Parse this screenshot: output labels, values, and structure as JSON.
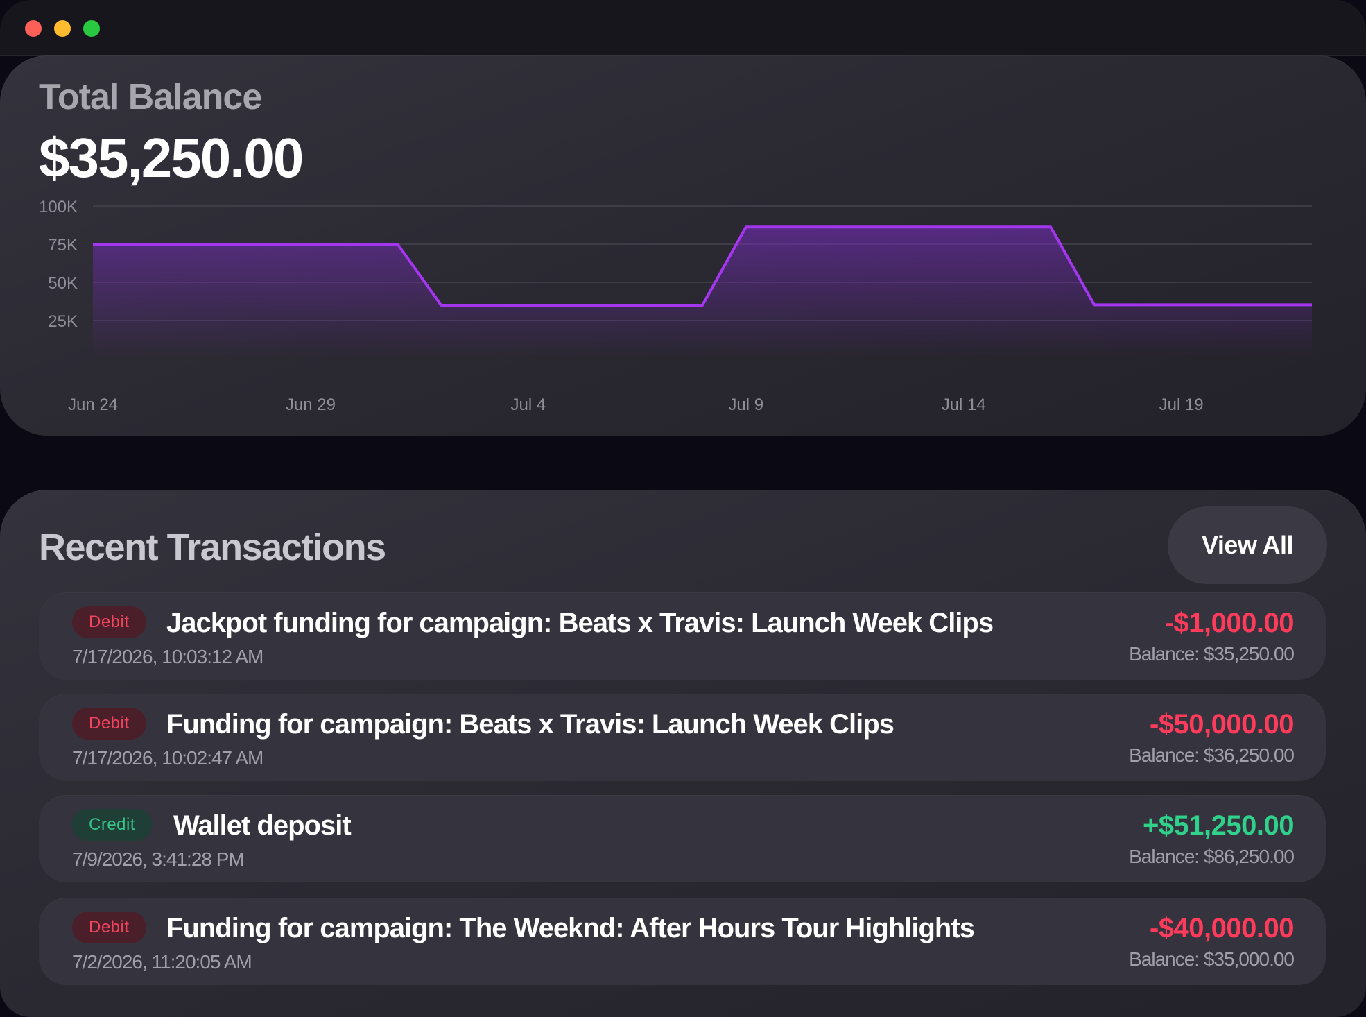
{
  "window": {
    "controls": [
      "close",
      "minimize",
      "maximize"
    ]
  },
  "balance": {
    "label": "Total Balance",
    "value": "$35,250.00"
  },
  "chart_data": {
    "type": "area",
    "title": "",
    "xlabel": "",
    "ylabel": "",
    "ylim": [
      0,
      100000
    ],
    "y_ticks": [
      {
        "value": 100000,
        "label": "100K"
      },
      {
        "value": 75000,
        "label": "75K"
      },
      {
        "value": 50000,
        "label": "50K"
      },
      {
        "value": 25000,
        "label": "25K"
      }
    ],
    "x_ticks": [
      "Jun 24",
      "Jun 29",
      "Jul 4",
      "Jul 9",
      "Jul 14",
      "Jul 19"
    ],
    "xlim": [
      "2026-06-24",
      "2026-07-22"
    ],
    "grid": true,
    "series": [
      {
        "x": [
          "2026-06-24",
          "2026-07-01",
          "2026-07-02",
          "2026-07-08",
          "2026-07-09",
          "2026-07-16",
          "2026-07-17",
          "2026-07-22"
        ],
        "y": [
          75000,
          75000,
          35000,
          35000,
          86250,
          86250,
          35250,
          35250
        ],
        "color": "#a336ee"
      }
    ]
  },
  "transactions": {
    "title": "Recent Transactions",
    "view_all_label": "View All",
    "items": [
      {
        "type": "Debit",
        "description": "Jackpot funding for campaign: Beats x Travis: Launch Week Clips",
        "date": "7/17/2026, 10:03:12 AM",
        "amount": "-$1,000.00",
        "balance": "Balance: $35,250.00"
      },
      {
        "type": "Debit",
        "description": "Funding for campaign: Beats x Travis: Launch Week Clips",
        "date": "7/17/2026, 10:02:47 AM",
        "amount": "-$50,000.00",
        "balance": "Balance: $36,250.00"
      },
      {
        "type": "Credit",
        "description": "Wallet deposit",
        "date": "7/9/2026, 3:41:28 PM",
        "amount": "+$51,250.00",
        "balance": "Balance: $86,250.00"
      },
      {
        "type": "Debit",
        "description": "Funding for campaign: The Weeknd: After Hours Tour Highlights",
        "date": "7/2/2026, 11:20:05 AM",
        "amount": "-$40,000.00",
        "balance": "Balance: $35,000.00"
      }
    ]
  },
  "colors": {
    "debit": "#ff3b5c",
    "credit": "#2fd18b",
    "chart_line": "#a336ee"
  }
}
